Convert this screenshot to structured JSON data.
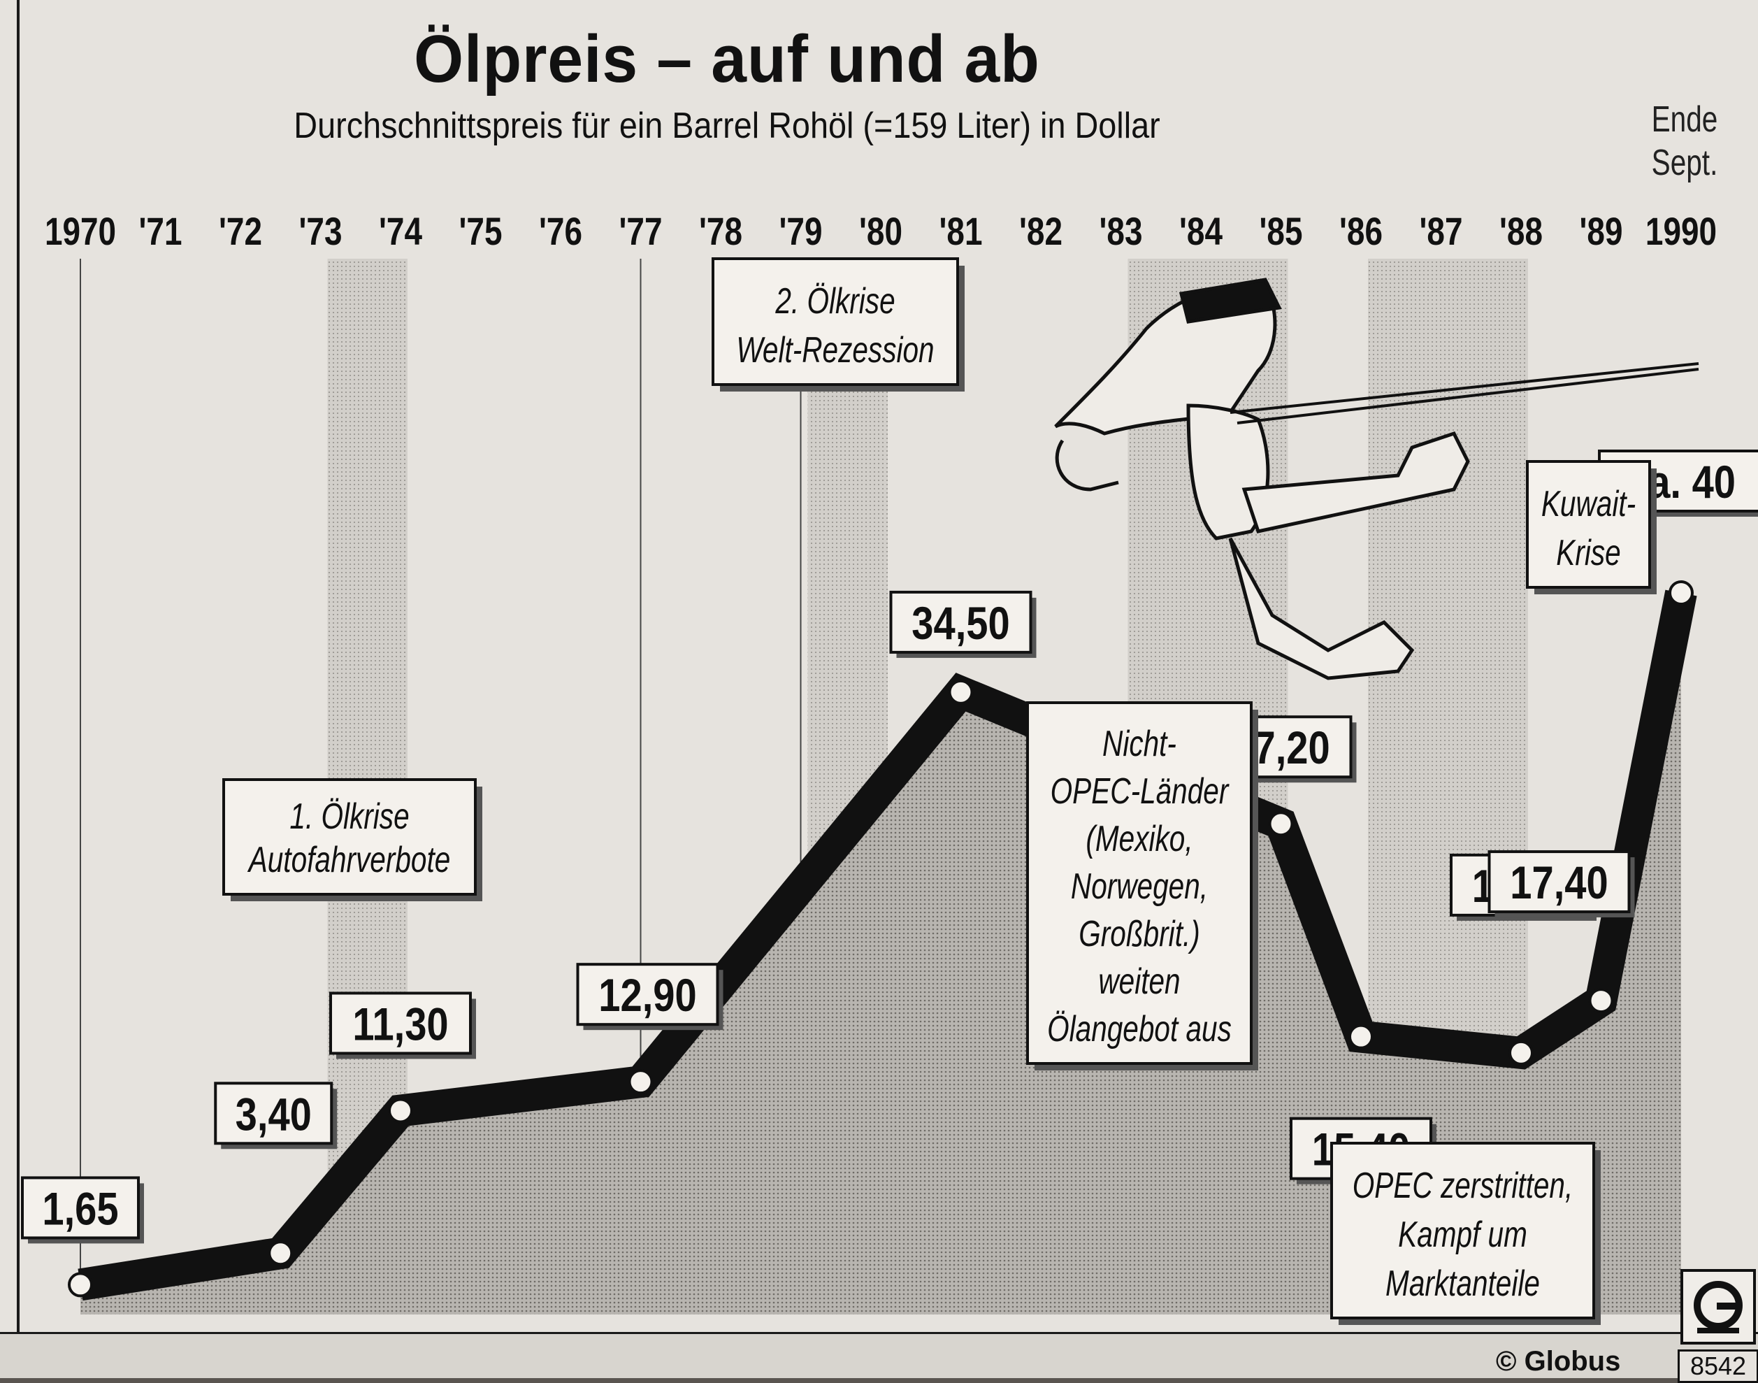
{
  "header": {
    "title": "Ölpreis – auf und ab",
    "subtitle": "Durchschnittspreis für ein Barrel Rohöl (=159 Liter) in Dollar",
    "end_note": [
      "Ende",
      "Sept."
    ]
  },
  "footer": {
    "copyright": "© Globus",
    "code": "8542"
  },
  "colors": {
    "line": "#111111",
    "area_fill": "#a9a6a1",
    "band_fill": "#c7c4bf",
    "paper": "#e6e3de"
  },
  "icons": [
    "globus-logo-icon",
    "sheikh-slingshot-illustration"
  ],
  "chart_data": {
    "type": "area",
    "title": "Ölpreis – auf und ab",
    "ylabel": "",
    "xlabel": "",
    "categories": [
      "1970",
      "'71",
      "'72",
      "'73",
      "'74",
      "'75",
      "'76",
      "'77",
      "'78",
      "'79",
      "'80",
      "'81",
      "'82",
      "'83",
      "'84",
      "'85",
      "'86",
      "'87",
      "'88",
      "'89",
      "1990"
    ],
    "x": [
      1970,
      1974,
      1977,
      1981,
      1985,
      1986,
      1987,
      1988,
      1989,
      1990
    ],
    "values": [
      1.65,
      11.3,
      12.9,
      34.5,
      27.2,
      15.4,
      17.4,
      14.5,
      17.4,
      40
    ],
    "points": [
      {
        "year": 1970,
        "value": 1.65,
        "label": "1,65"
      },
      {
        "year": 1972.5,
        "value": 3.4,
        "label": "3,40"
      },
      {
        "year": 1974,
        "value": 11.3,
        "label": "11,30"
      },
      {
        "year": 1977,
        "value": 12.9,
        "label": "12,90"
      },
      {
        "year": 1981,
        "value": 34.5,
        "label": "34,50"
      },
      {
        "year": 1985,
        "value": 27.2,
        "label": "27,20"
      },
      {
        "year": 1986,
        "value": 15.4,
        "label": "15,40"
      },
      {
        "year": 1988,
        "value": 14.5,
        "label": "14,50"
      },
      {
        "year": 1989,
        "value": 17.4,
        "label": "17,40"
      },
      {
        "year": 1990,
        "value": 40,
        "label": "ca. 40"
      }
    ],
    "annotations": [
      {
        "lines": [
          "1. Ölkrise",
          "Autofahrverbote"
        ]
      },
      {
        "lines": [
          "2. Ölkrise",
          "Welt-Rezession"
        ]
      },
      {
        "lines": [
          "Nicht-",
          "OPEC-Länder",
          "(Mexiko,",
          "Norwegen,",
          "Großbrit.)",
          "weiten",
          "Ölangebot aus"
        ]
      },
      {
        "lines": [
          "Kuwait-",
          "Krise"
        ]
      },
      {
        "lines": [
          "OPEC zerstritten,",
          "Kampf um",
          "Marktanteile"
        ]
      }
    ],
    "shaded_periods": [
      [
        1973,
        1974
      ],
      [
        1979,
        1980
      ],
      [
        1983,
        1985
      ],
      [
        1986,
        1988
      ]
    ],
    "ylim": [
      0,
      45
    ],
    "grid": false,
    "legend": "none"
  }
}
